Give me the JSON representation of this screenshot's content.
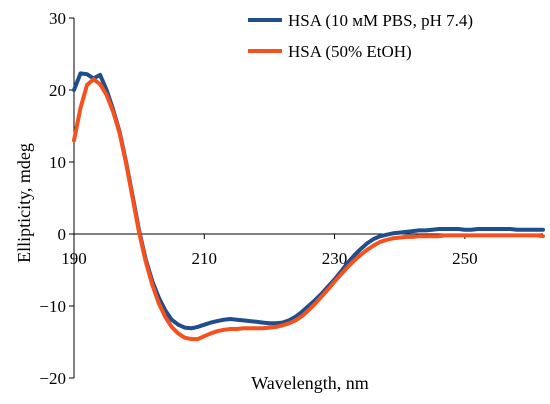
{
  "chart_data": {
    "type": "line",
    "title": "",
    "xlabel": "Wavelength, nm",
    "ylabel": "Ellipticity, mdeg",
    "xlim": [
      190,
      262
    ],
    "ylim": [
      -20,
      30
    ],
    "x_ticks": [
      190,
      210,
      230,
      250
    ],
    "y_ticks": [
      -20,
      -10,
      0,
      10,
      20,
      30
    ],
    "x_tick_labels": [
      "190",
      "210",
      "230",
      "250"
    ],
    "y_tick_labels": [
      "−20",
      "−10",
      "0",
      "10",
      "20",
      "30"
    ],
    "grid": false,
    "legend_position": "top-right",
    "series": [
      {
        "name": "HSA (10 мМ PBS, pH 7.4)",
        "color": "#1f4e8c",
        "x": [
          190,
          191,
          192,
          193,
          194,
          195,
          196,
          197,
          198,
          199,
          200,
          201,
          202,
          203,
          204,
          205,
          206,
          207,
          208,
          209,
          210,
          211,
          212,
          213,
          214,
          215,
          216,
          217,
          218,
          219,
          220,
          221,
          222,
          223,
          224,
          225,
          226,
          227,
          228,
          229,
          230,
          231,
          232,
          233,
          234,
          235,
          236,
          237,
          238,
          239,
          240,
          241,
          242,
          243,
          244,
          245,
          246,
          247,
          248,
          249,
          250,
          251,
          252,
          253,
          254,
          255,
          256,
          257,
          258,
          259,
          260,
          261,
          262
        ],
        "y": [
          20,
          22.3,
          22.2,
          21.6,
          22.1,
          20,
          17.3,
          14.2,
          10,
          5.3,
          0.5,
          -3.5,
          -6.5,
          -8.8,
          -10.6,
          -11.9,
          -12.6,
          -13.0,
          -13.1,
          -12.9,
          -12.6,
          -12.3,
          -12.1,
          -11.9,
          -11.8,
          -11.9,
          -12.0,
          -12.1,
          -12.2,
          -12.3,
          -12.4,
          -12.4,
          -12.3,
          -12.0,
          -11.5,
          -10.8,
          -10.0,
          -9.2,
          -8.3,
          -7.3,
          -6.3,
          -5.2,
          -4.0,
          -3.0,
          -2.1,
          -1.3,
          -0.7,
          -0.3,
          -0.1,
          0.1,
          0.2,
          0.3,
          0.4,
          0.5,
          0.5,
          0.6,
          0.7,
          0.7,
          0.7,
          0.7,
          0.6,
          0.6,
          0.7,
          0.7,
          0.7,
          0.7,
          0.7,
          0.7,
          0.6,
          0.6,
          0.6,
          0.6,
          0.6
        ]
      },
      {
        "name": "HSA (50% EtOH)",
        "color": "#f4511e",
        "x": [
          190,
          191,
          192,
          193,
          194,
          195,
          196,
          197,
          198,
          199,
          200,
          201,
          202,
          203,
          204,
          205,
          206,
          207,
          208,
          209,
          210,
          211,
          212,
          213,
          214,
          215,
          216,
          217,
          218,
          219,
          220,
          221,
          222,
          223,
          224,
          225,
          226,
          227,
          228,
          229,
          230,
          231,
          232,
          233,
          234,
          235,
          236,
          237,
          238,
          239,
          240,
          241,
          242,
          243,
          244,
          245,
          246,
          247,
          248,
          249,
          250,
          251,
          252,
          253,
          254,
          255,
          256,
          257,
          258,
          259,
          260,
          261,
          262
        ],
        "y": [
          13,
          17.5,
          20.7,
          21.5,
          20.8,
          19.3,
          17.0,
          14.0,
          9.8,
          5.0,
          0.2,
          -3.8,
          -7.0,
          -9.6,
          -11.5,
          -12.9,
          -13.8,
          -14.4,
          -14.6,
          -14.6,
          -14.2,
          -13.8,
          -13.5,
          -13.3,
          -13.2,
          -13.2,
          -13.1,
          -13.1,
          -13.1,
          -13.1,
          -13.0,
          -12.9,
          -12.7,
          -12.4,
          -12.0,
          -11.4,
          -10.6,
          -9.7,
          -8.7,
          -7.7,
          -6.6,
          -5.6,
          -4.6,
          -3.7,
          -2.9,
          -2.2,
          -1.6,
          -1.1,
          -0.8,
          -0.6,
          -0.5,
          -0.4,
          -0.4,
          -0.3,
          -0.3,
          -0.3,
          -0.3,
          -0.2,
          -0.2,
          -0.2,
          -0.2,
          -0.2,
          -0.2,
          -0.2,
          -0.2,
          -0.2,
          -0.2,
          -0.2,
          -0.2,
          -0.2,
          -0.2,
          -0.2,
          -0.3
        ]
      }
    ]
  }
}
